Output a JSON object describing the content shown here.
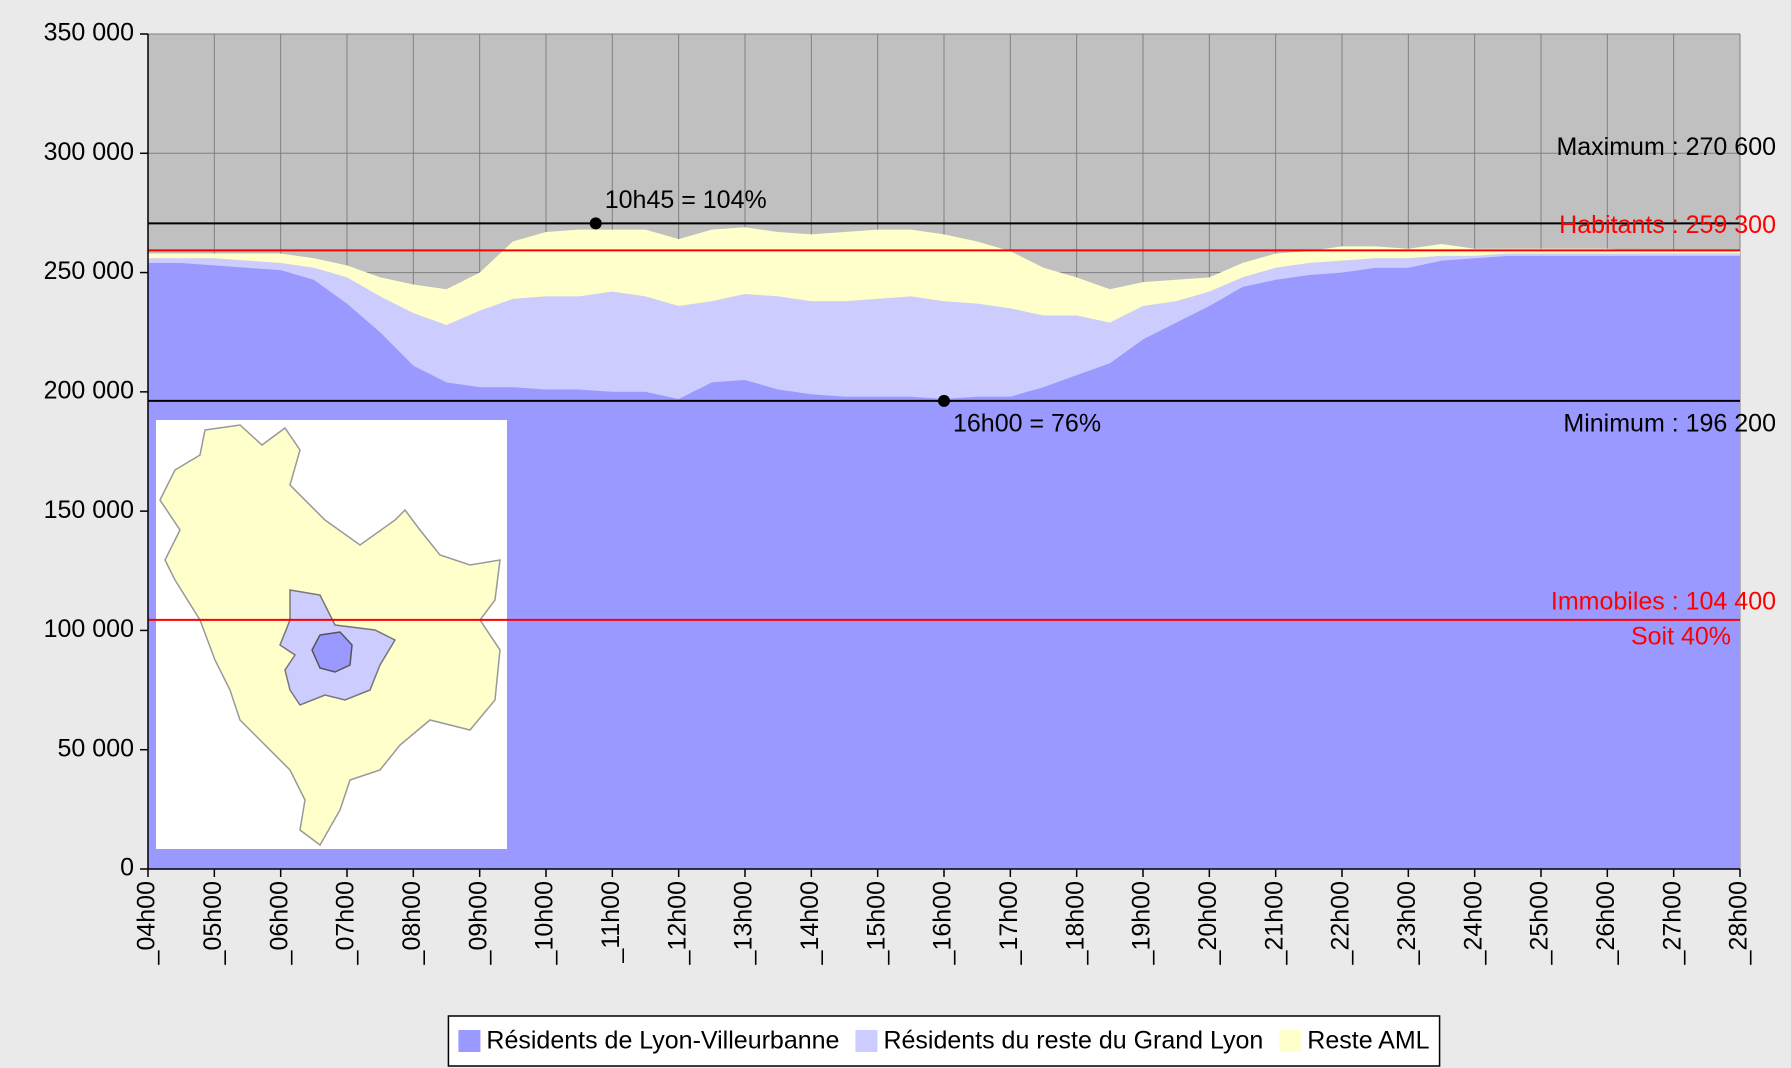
{
  "chart_data": {
    "type": "stacked_area",
    "x": [
      4,
      4.5,
      5,
      5.5,
      6,
      6.5,
      7,
      7.5,
      8,
      8.5,
      9,
      9.5,
      10,
      10.5,
      11,
      11.5,
      12,
      12.5,
      13,
      13.5,
      14,
      14.5,
      15,
      15.5,
      16,
      16.5,
      17,
      17.5,
      18,
      18.5,
      19,
      19.5,
      20,
      20.5,
      21,
      21.5,
      22,
      22.5,
      23,
      23.5,
      24,
      24.5,
      25,
      25.5,
      26,
      26.5,
      27,
      27.5,
      28
    ],
    "xlim": [
      4,
      28
    ],
    "xticks": [
      {
        "value": 4,
        "label": "_04h00"
      },
      {
        "value": 5,
        "label": "_05h00"
      },
      {
        "value": 6,
        "label": "_06h00"
      },
      {
        "value": 7,
        "label": "_07h00"
      },
      {
        "value": 8,
        "label": "_08h00"
      },
      {
        "value": 9,
        "label": "_09h00"
      },
      {
        "value": 10,
        "label": "_10h00"
      },
      {
        "value": 11,
        "label": "_11h00"
      },
      {
        "value": 12,
        "label": "_12h00"
      },
      {
        "value": 13,
        "label": "_13h00"
      },
      {
        "value": 14,
        "label": "_14h00"
      },
      {
        "value": 15,
        "label": "_15h00"
      },
      {
        "value": 16,
        "label": "_16h00"
      },
      {
        "value": 17,
        "label": "_17h00"
      },
      {
        "value": 18,
        "label": "_18h00"
      },
      {
        "value": 19,
        "label": "_19h00"
      },
      {
        "value": 20,
        "label": "_20h00"
      },
      {
        "value": 21,
        "label": "_21h00"
      },
      {
        "value": 22,
        "label": "_22h00"
      },
      {
        "value": 23,
        "label": "_23h00"
      },
      {
        "value": 24,
        "label": "_24h00"
      },
      {
        "value": 25,
        "label": "_25h00"
      },
      {
        "value": 26,
        "label": "_26h00"
      },
      {
        "value": 27,
        "label": "_27h00"
      },
      {
        "value": 28,
        "label": "_28h00"
      }
    ],
    "ylim": [
      0,
      350000
    ],
    "yticks": [
      0,
      {
        "value": 50000,
        "label": "50 000"
      },
      {
        "value": 100000,
        "label": "100 000"
      },
      {
        "value": 150000,
        "label": "150 000"
      },
      {
        "value": 200000,
        "label": "200 000"
      },
      {
        "value": 250000,
        "label": "250 000"
      },
      {
        "value": 300000,
        "label": "300 000"
      },
      {
        "value": 350000,
        "label": "350 000"
      }
    ],
    "grid": true,
    "series": [
      {
        "name": "Résidents de Lyon-Villeurbanne",
        "color": "#9999ff",
        "values": [
          254000,
          254000,
          253000,
          252000,
          251000,
          247000,
          237000,
          225000,
          211000,
          204000,
          202000,
          202000,
          201000,
          201000,
          200000,
          200000,
          197000,
          204000,
          205000,
          201000,
          199000,
          198000,
          198000,
          198000,
          197000,
          198000,
          198000,
          202000,
          207000,
          212000,
          222000,
          229000,
          236000,
          244000,
          247000,
          249000,
          250000,
          252000,
          252000,
          255000,
          256000,
          257000,
          257000,
          257000,
          257000,
          257000,
          257000,
          257000,
          257000
        ]
      },
      {
        "name": "Résidents du reste du Grand Lyon",
        "color": "#ccccff",
        "values": [
          2000,
          2000,
          3000,
          3000,
          3000,
          5000,
          11000,
          15000,
          22000,
          24000,
          32000,
          37000,
          39000,
          39000,
          42000,
          40000,
          39000,
          34000,
          36000,
          39000,
          39000,
          40000,
          41000,
          42000,
          41000,
          39000,
          37000,
          30000,
          25000,
          17000,
          14000,
          9000,
          6000,
          4000,
          5000,
          5000,
          5000,
          4000,
          4000,
          2000,
          1000,
          1000,
          1000,
          1000,
          1000,
          1000,
          1000,
          1000,
          1000
        ]
      },
      {
        "name": "Reste AML",
        "color": "#ffffcc",
        "values": [
          2000,
          2000,
          2000,
          3000,
          4000,
          4000,
          5000,
          8000,
          12000,
          15000,
          16000,
          24000,
          27000,
          28000,
          26000,
          28000,
          28000,
          30000,
          28000,
          27000,
          28000,
          29000,
          29000,
          28000,
          28000,
          26000,
          24000,
          20000,
          16000,
          14000,
          10000,
          9000,
          6000,
          6000,
          6000,
          5000,
          6000,
          5000,
          4000,
          5000,
          3000,
          2000,
          2000,
          2000,
          2000,
          1000,
          1000,
          1000,
          1000
        ]
      }
    ],
    "reference_lines": [
      {
        "value": 270600,
        "label": "Maximum : 270 600",
        "color": "#000000"
      },
      {
        "value": 259300,
        "label": "Habitants : 259 300",
        "color": "#ff0000"
      },
      {
        "value": 196200,
        "label": "Minimum : 196 200",
        "color": "#000000"
      },
      {
        "value": 104400,
        "label": "Immobiles : 104 400",
        "sublabel": "Soit 40%",
        "color": "#ff0000"
      }
    ],
    "annotations": [
      {
        "x": 10.75,
        "y": 270600,
        "label": "10h45 = 104%"
      },
      {
        "x": 16,
        "y": 196200,
        "label": "16h00 = 76%"
      }
    ],
    "legend": "bottom"
  }
}
